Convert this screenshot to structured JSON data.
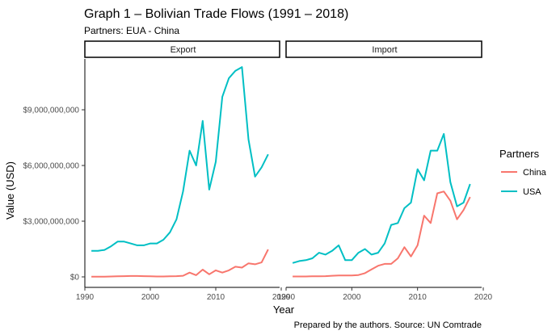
{
  "chart_data": {
    "type": "line",
    "title": "Graph 1 – Bolivian Trade Flows (1991 – 2018)",
    "subtitle": "Partners: EUA - China",
    "xlabel": "Year",
    "ylabel": "Value (USD)",
    "caption": "Prepared by the authors. Source: UN Comtrade",
    "xlim": [
      1990,
      2020
    ],
    "ylim": [
      0,
      11500000000
    ],
    "x_ticks": [
      1990,
      2000,
      2010,
      2020
    ],
    "y_ticks": [
      {
        "value": 0,
        "label": "$0"
      },
      {
        "value": 3000000000,
        "label": "$3,000,000,000"
      },
      {
        "value": 6000000000,
        "label": "$6,000,000,000"
      },
      {
        "value": 9000000000,
        "label": "$9,000,000,000"
      }
    ],
    "grid": false,
    "legend": {
      "title": "Partners",
      "position": "right",
      "entries": [
        {
          "name": "China",
          "color": "#F8766D"
        },
        {
          "name": "USA",
          "color": "#00BFC4"
        }
      ]
    },
    "facets": [
      {
        "label": "Export",
        "series": [
          {
            "name": "USA",
            "color": "#00BFC4",
            "x": [
              1991,
              1992,
              1993,
              1994,
              1995,
              1996,
              1997,
              1998,
              1999,
              2000,
              2001,
              2002,
              2003,
              2004,
              2005,
              2006,
              2007,
              2008,
              2009,
              2010,
              2011,
              2012,
              2013,
              2014,
              2015,
              2016,
              2017,
              2018
            ],
            "y": [
              1400000000,
              1400000000,
              1450000000,
              1650000000,
              1900000000,
              1900000000,
              1800000000,
              1700000000,
              1700000000,
              1800000000,
              1800000000,
              2000000000,
              2400000000,
              3100000000,
              4600000000,
              6800000000,
              6000000000,
              8400000000,
              4700000000,
              6200000000,
              9700000000,
              10700000000,
              11100000000,
              11300000000,
              7400000000,
              5400000000,
              5900000000,
              6600000000
            ]
          },
          {
            "name": "China",
            "color": "#F8766D",
            "x": [
              1991,
              1992,
              1993,
              1994,
              1995,
              1996,
              1997,
              1998,
              1999,
              2000,
              2001,
              2002,
              2003,
              2004,
              2005,
              2006,
              2007,
              2008,
              2009,
              2010,
              2011,
              2012,
              2013,
              2014,
              2015,
              2016,
              2017,
              2018
            ],
            "y": [
              10000000,
              10000000,
              10000000,
              20000000,
              30000000,
              40000000,
              50000000,
              50000000,
              40000000,
              30000000,
              20000000,
              20000000,
              30000000,
              40000000,
              60000000,
              230000000,
              90000000,
              390000000,
              140000000,
              350000000,
              230000000,
              350000000,
              550000000,
              500000000,
              730000000,
              680000000,
              780000000,
              1480000000
            ]
          }
        ]
      },
      {
        "label": "Import",
        "series": [
          {
            "name": "USA",
            "color": "#00BFC4",
            "x": [
              1991,
              1992,
              1993,
              1994,
              1995,
              1996,
              1997,
              1998,
              1999,
              2000,
              2001,
              2002,
              2003,
              2004,
              2005,
              2006,
              2007,
              2008,
              2009,
              2010,
              2011,
              2012,
              2013,
              2014,
              2015,
              2016,
              2017,
              2018
            ],
            "y": [
              750000000,
              850000000,
              900000000,
              1000000000,
              1300000000,
              1200000000,
              1400000000,
              1700000000,
              900000000,
              900000000,
              1300000000,
              1500000000,
              1200000000,
              1300000000,
              1800000000,
              2800000000,
              2900000000,
              3700000000,
              4000000000,
              5800000000,
              5200000000,
              6800000000,
              6800000000,
              7700000000,
              5100000000,
              3800000000,
              4000000000,
              5000000000
            ]
          },
          {
            "name": "China",
            "color": "#F8766D",
            "x": [
              1991,
              1992,
              1993,
              1994,
              1995,
              1996,
              1997,
              1998,
              1999,
              2000,
              2001,
              2002,
              2003,
              2004,
              2005,
              2006,
              2007,
              2008,
              2009,
              2010,
              2011,
              2012,
              2013,
              2014,
              2015,
              2016,
              2017,
              2018
            ],
            "y": [
              20000000,
              20000000,
              20000000,
              30000000,
              30000000,
              40000000,
              60000000,
              80000000,
              80000000,
              80000000,
              100000000,
              200000000,
              400000000,
              600000000,
              700000000,
              700000000,
              1000000000,
              1600000000,
              1100000000,
              1700000000,
              3300000000,
              2900000000,
              4500000000,
              4600000000,
              4100000000,
              3100000000,
              3600000000,
              4300000000
            ]
          }
        ]
      }
    ]
  }
}
